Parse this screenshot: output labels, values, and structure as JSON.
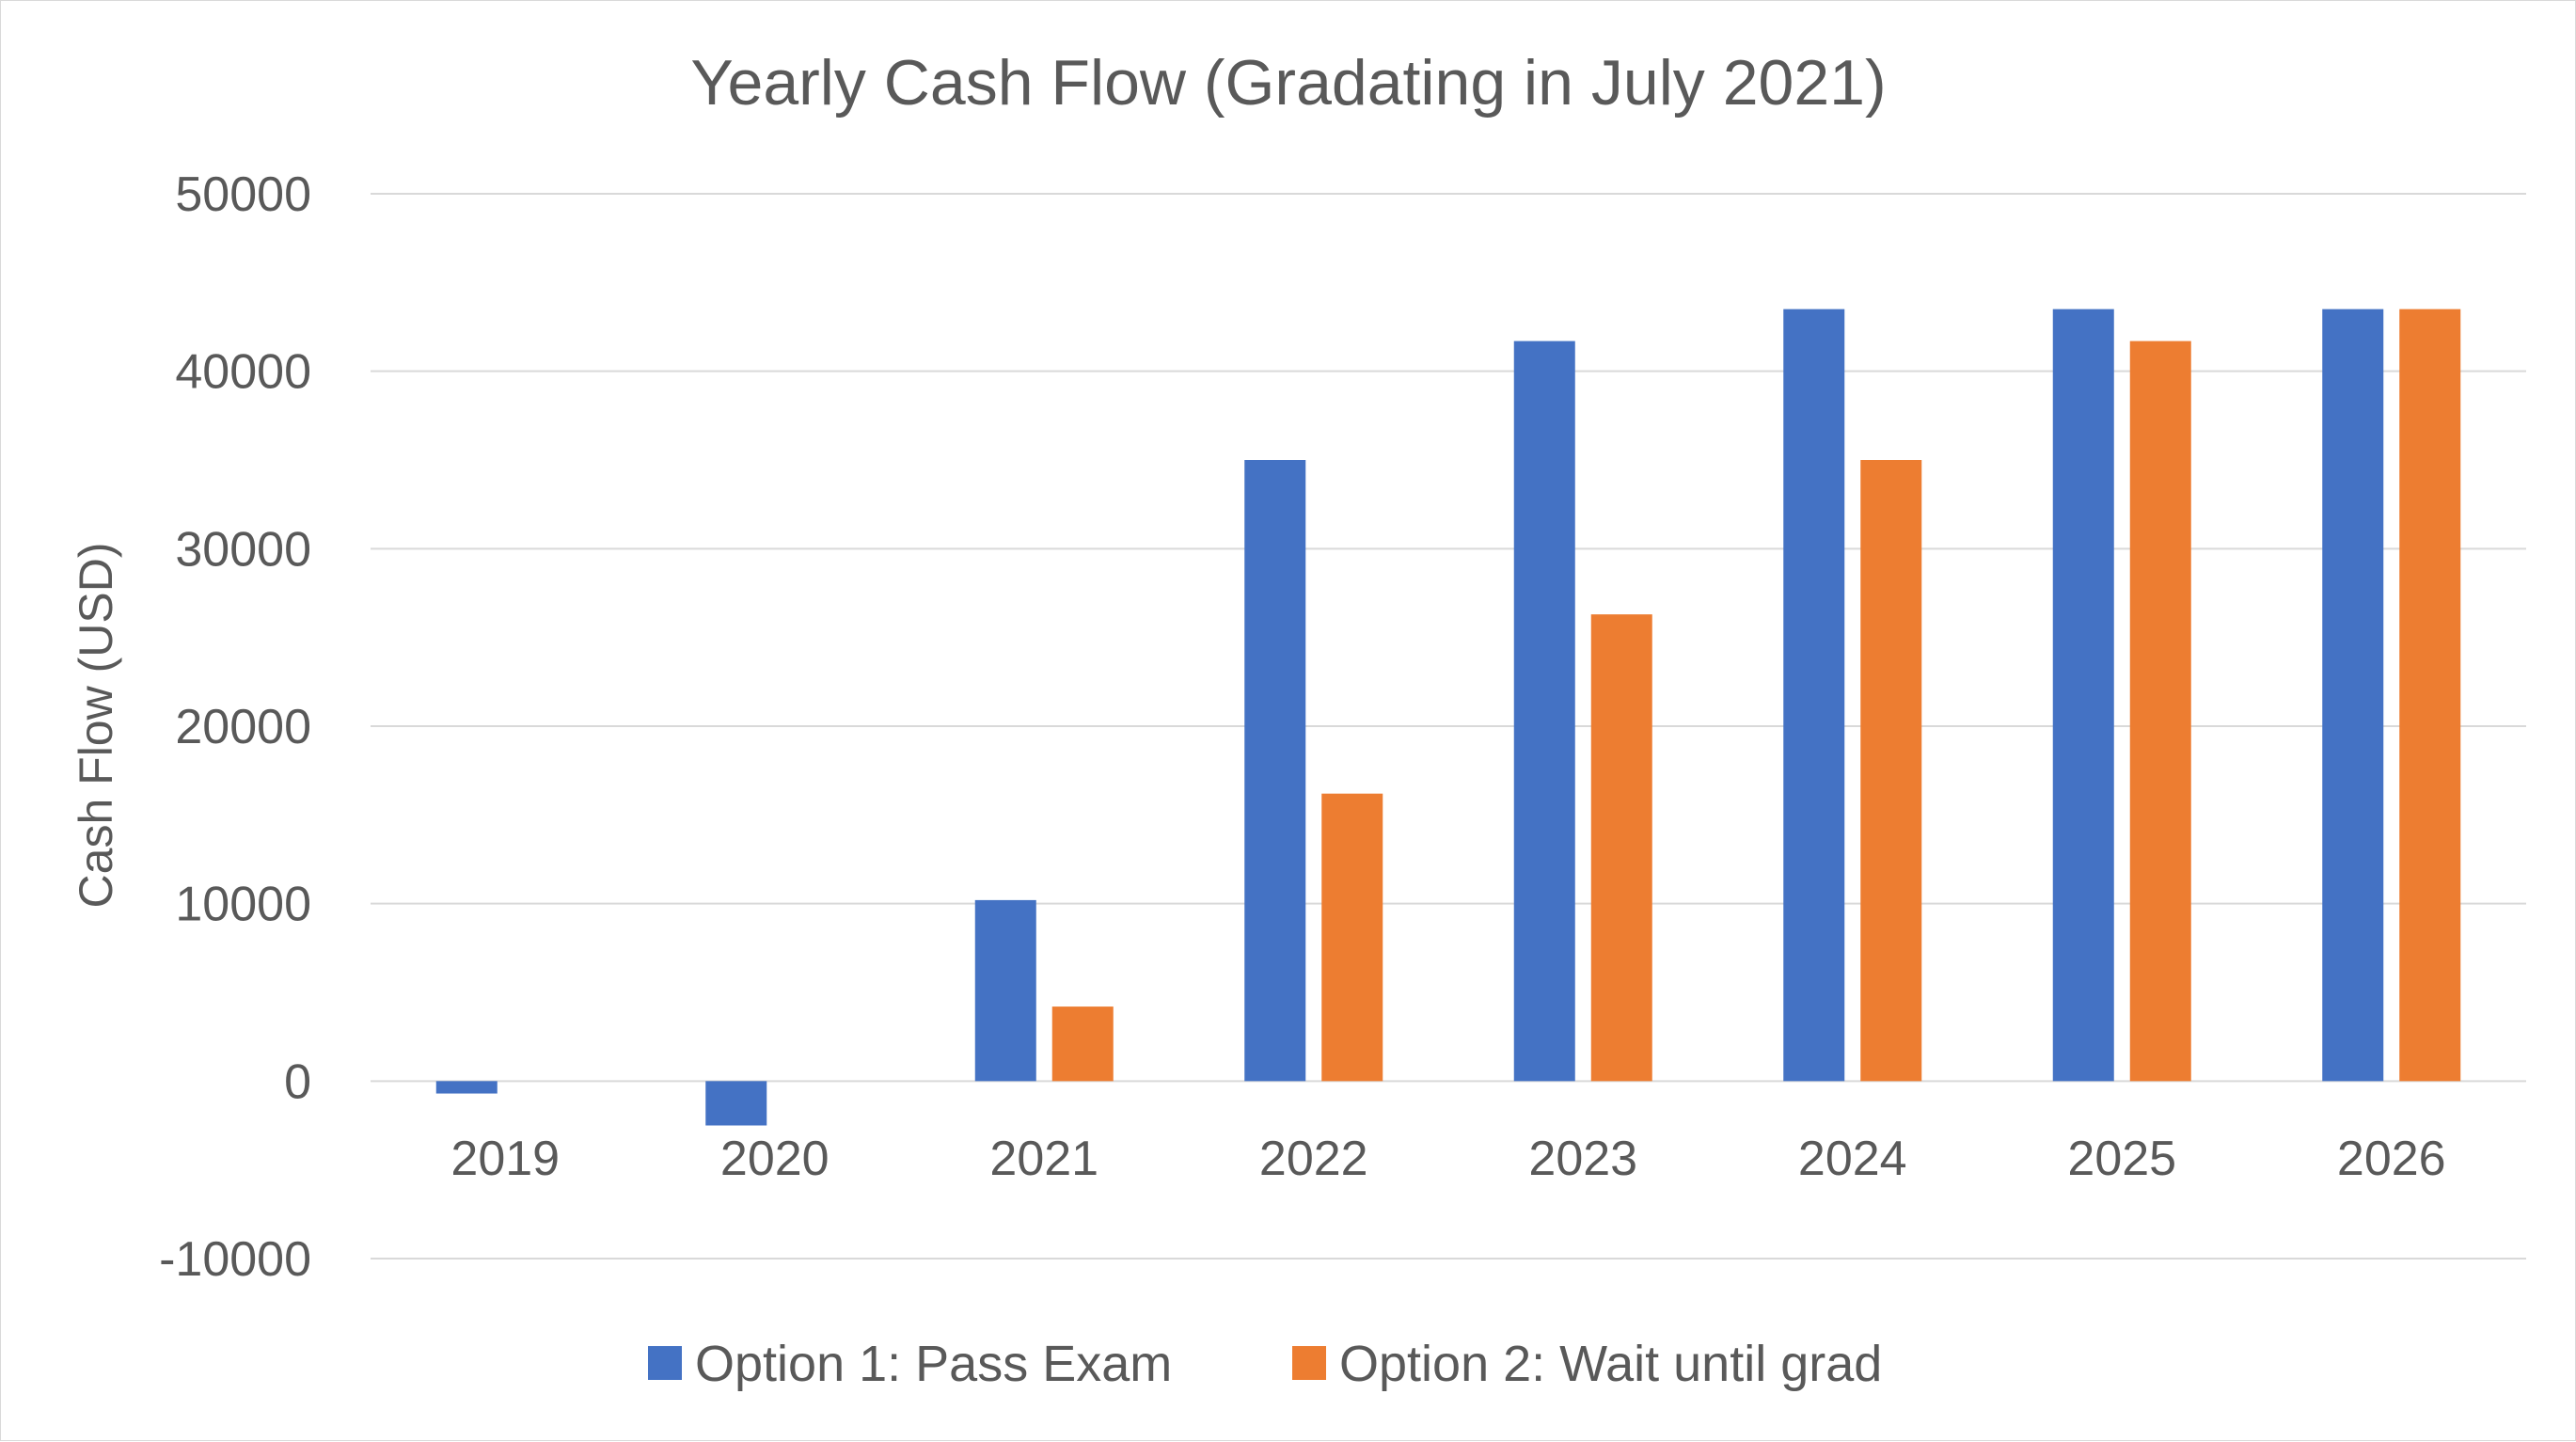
{
  "chart_data": {
    "type": "bar",
    "title": "Yearly Cash Flow (Gradating in July 2021)",
    "xlabel": "",
    "ylabel": "Cash Flow (USD)",
    "ylim": [
      -10000,
      50000
    ],
    "yticks": [
      50000,
      40000,
      30000,
      20000,
      10000,
      0,
      -10000
    ],
    "categories": [
      "2019",
      "2020",
      "2021",
      "2022",
      "2023",
      "2024",
      "2025",
      "2026"
    ],
    "series": [
      {
        "name": "Option 1: Pass Exam",
        "color": "#4472c4",
        "values": [
          -700,
          -2500,
          10200,
          35000,
          41700,
          43500,
          43500,
          43500
        ]
      },
      {
        "name": "Option 2: Wait until grad",
        "color": "#ed7d31",
        "values": [
          0,
          0,
          4200,
          16200,
          26300,
          35000,
          41700,
          43500
        ]
      }
    ],
    "grid": true,
    "legend_position": "bottom"
  }
}
